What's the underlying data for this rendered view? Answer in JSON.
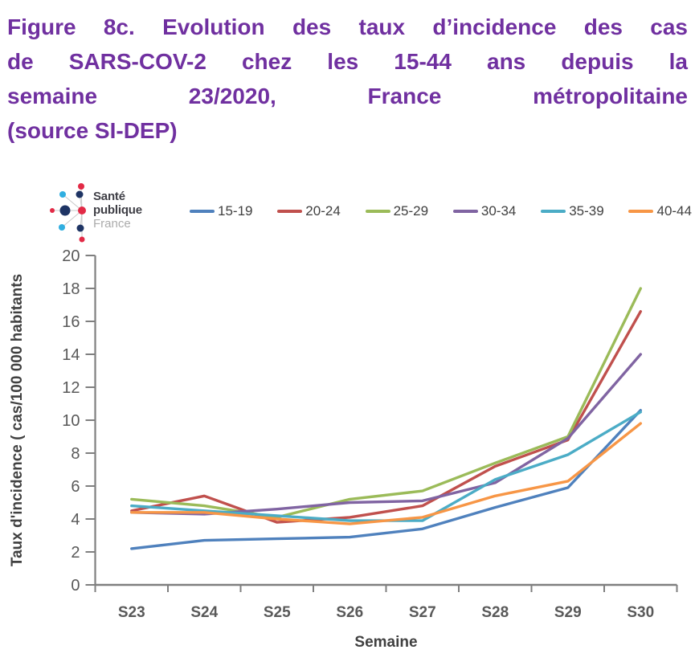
{
  "title": {
    "color": "#7030A0",
    "lines": [
      "Figure 8c. Evolution des taux d’incidence des cas",
      "de SARS-COV-2 chez les 15-44 ans  depuis la",
      "semaine 23/2020, France métropolitaine",
      "(source SI-DEP)"
    ]
  },
  "logo": {
    "name": "Santé publique France",
    "line1": "Santé",
    "line2": "publique",
    "line3": "France",
    "dot_colors": {
      "navy": "#1E3464",
      "cyan": "#30AEE0",
      "red": "#E22A46"
    }
  },
  "chart_data": {
    "type": "line",
    "title": "",
    "categories": [
      "S23",
      "S24",
      "S25",
      "S26",
      "S27",
      "S28",
      "S29",
      "S30"
    ],
    "series": [
      {
        "name": "15-19",
        "color": "#4F81BD",
        "values": [
          2.2,
          2.7,
          2.8,
          2.9,
          3.4,
          4.7,
          5.9,
          10.6
        ]
      },
      {
        "name": "20-24",
        "color": "#C0504D",
        "values": [
          4.5,
          5.4,
          3.8,
          4.1,
          4.8,
          7.2,
          8.8,
          16.6
        ]
      },
      {
        "name": "25-29",
        "color": "#9BBB59",
        "values": [
          5.2,
          4.8,
          4.1,
          5.2,
          5.7,
          7.4,
          9.0,
          18.0
        ]
      },
      {
        "name": "30-34",
        "color": "#8064A2",
        "values": [
          4.4,
          4.3,
          4.6,
          5.0,
          5.1,
          6.2,
          8.9,
          14.0
        ]
      },
      {
        "name": "35-39",
        "color": "#4BACC6",
        "values": [
          4.8,
          4.5,
          4.2,
          3.9,
          3.9,
          6.4,
          7.9,
          10.5
        ]
      },
      {
        "name": "40-44",
        "color": "#F79646",
        "values": [
          4.4,
          4.4,
          4.0,
          3.7,
          4.1,
          5.4,
          6.3,
          9.8
        ]
      }
    ],
    "xlabel": "Semaine",
    "ylabel": "Taux d'incidence ( cas/100 000 habitants",
    "ylim": [
      0,
      20
    ],
    "ytick_step": 2,
    "grid": false,
    "legend_position": "top",
    "axis_color": "#7F7F7F",
    "tick_label_color": "#595959"
  }
}
